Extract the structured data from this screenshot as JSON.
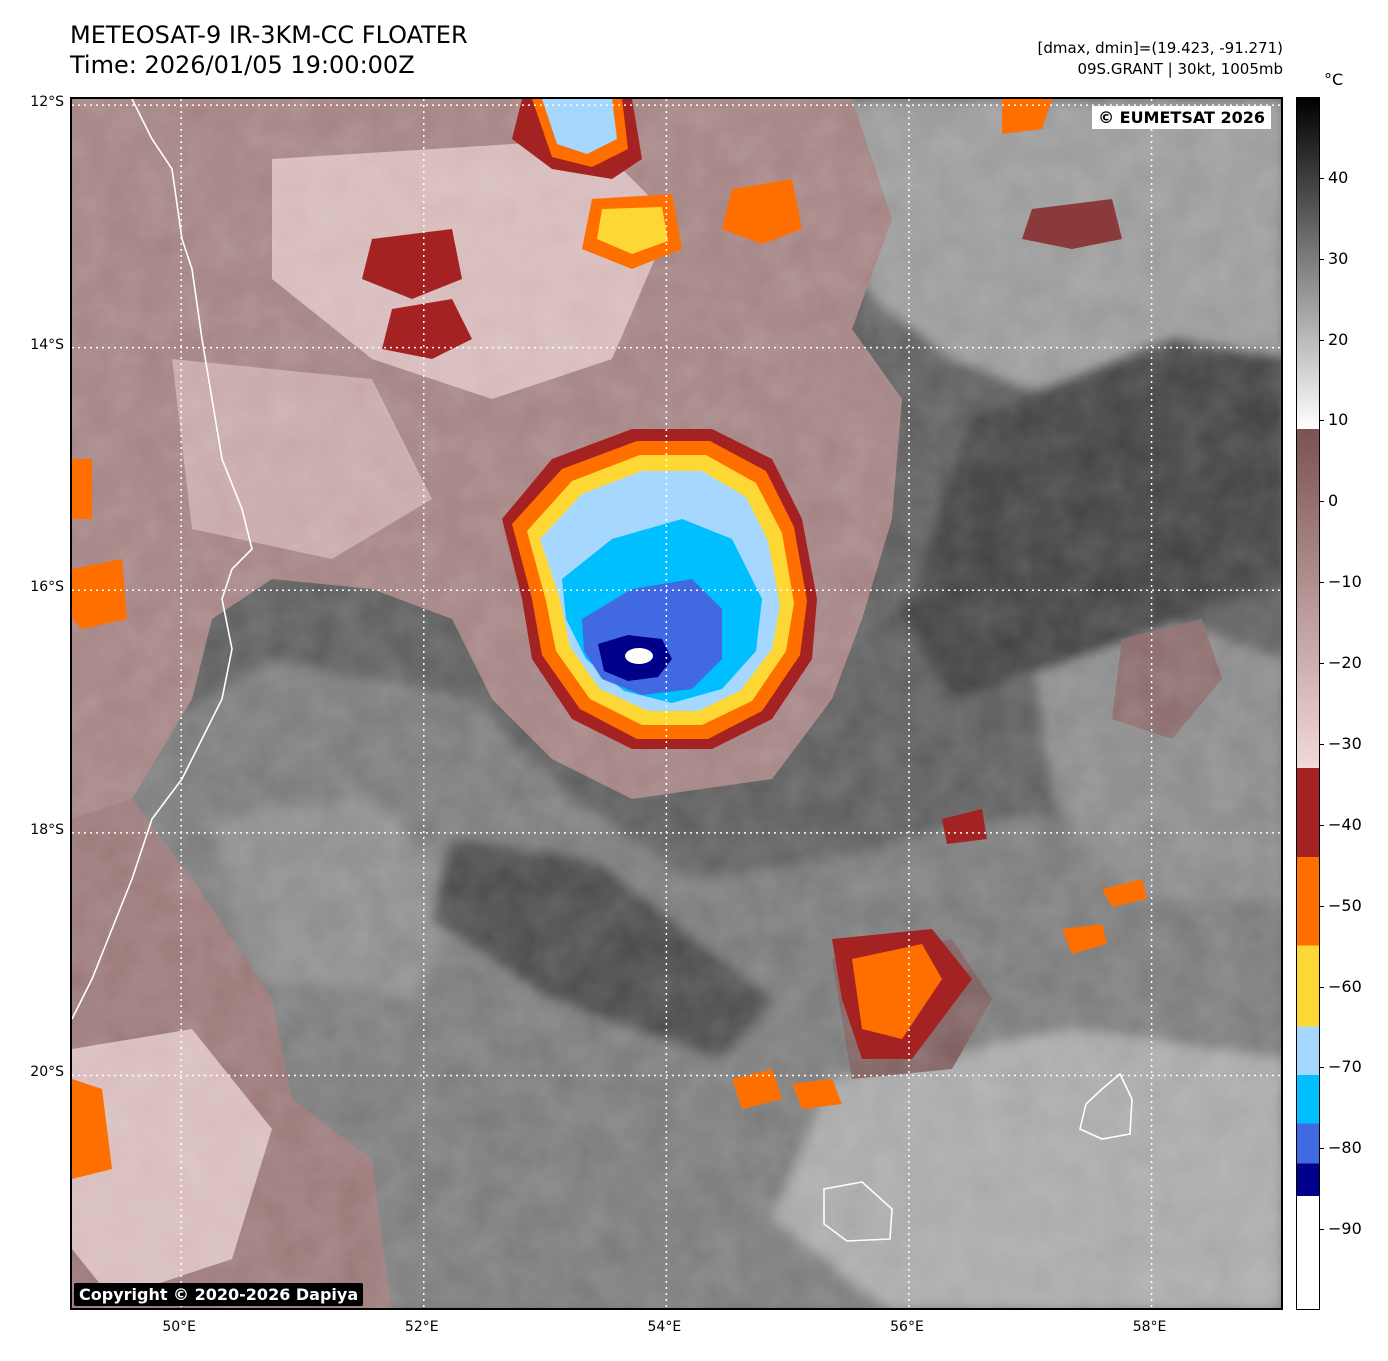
{
  "title": {
    "line1": "METEOSAT-9 IR-3KM-CC FLOATER",
    "line2": "Time: 2026/01/05 19:00:00Z"
  },
  "meta": {
    "range": "[dmax, dmin]=(19.423, -91.271)",
    "storm": "09S.GRANT | 30kt, 1005mb"
  },
  "credits": {
    "eumetsat": "© EUMETSAT 2026",
    "dapiya": "Copyright © 2020-2026 Dapiya"
  },
  "axes": {
    "lat_labels": [
      "12°S",
      "14°S",
      "16°S",
      "18°S",
      "20°S"
    ],
    "lon_labels": [
      "50°E",
      "52°E",
      "54°E",
      "56°E",
      "58°E"
    ],
    "lat_values": [
      -12,
      -14,
      -16,
      -18,
      -20
    ],
    "lon_values": [
      50,
      52,
      54,
      56,
      58
    ],
    "extent": {
      "lon_min": 49.1,
      "lon_max": 59.1,
      "lat_max": -11.95,
      "lat_min": -21.95
    },
    "gridlines": "dotted white"
  },
  "colorbar": {
    "unit": "°C",
    "range": [
      -100,
      50
    ],
    "ticks": [
      "40",
      "30",
      "20",
      "10",
      "0",
      "−10",
      "−20",
      "−30",
      "−40",
      "−50",
      "−60",
      "−70",
      "−80",
      "−90"
    ],
    "tick_values": [
      40,
      30,
      20,
      10,
      0,
      -10,
      -20,
      -30,
      -40,
      -50,
      -60,
      -70,
      -80,
      -90
    ],
    "bands": [
      {
        "from": -100,
        "to": -86,
        "color": "#ffffff"
      },
      {
        "from": -86,
        "to": -82,
        "color": "#00008b"
      },
      {
        "from": -82,
        "to": -77,
        "color": "#4169e1"
      },
      {
        "from": -77,
        "to": -71,
        "color": "#00bfff"
      },
      {
        "from": -71,
        "to": -65,
        "color": "#a6d8ff"
      },
      {
        "from": -65,
        "to": -55,
        "color": "#fdd835"
      },
      {
        "from": -55,
        "to": -44,
        "color": "#ff6f00"
      },
      {
        "from": -44,
        "to": -33,
        "color": "#a52222"
      },
      {
        "from": -33,
        "to": 9,
        "gradient": [
          "#f3d9d9",
          "#7a5252"
        ]
      },
      {
        "from": 9,
        "to": 50,
        "gradient": [
          "#ffffff",
          "#000000"
        ]
      }
    ]
  },
  "storm": {
    "name": "09S.GRANT",
    "center_lon": 53.8,
    "center_lat": -16.5
  }
}
